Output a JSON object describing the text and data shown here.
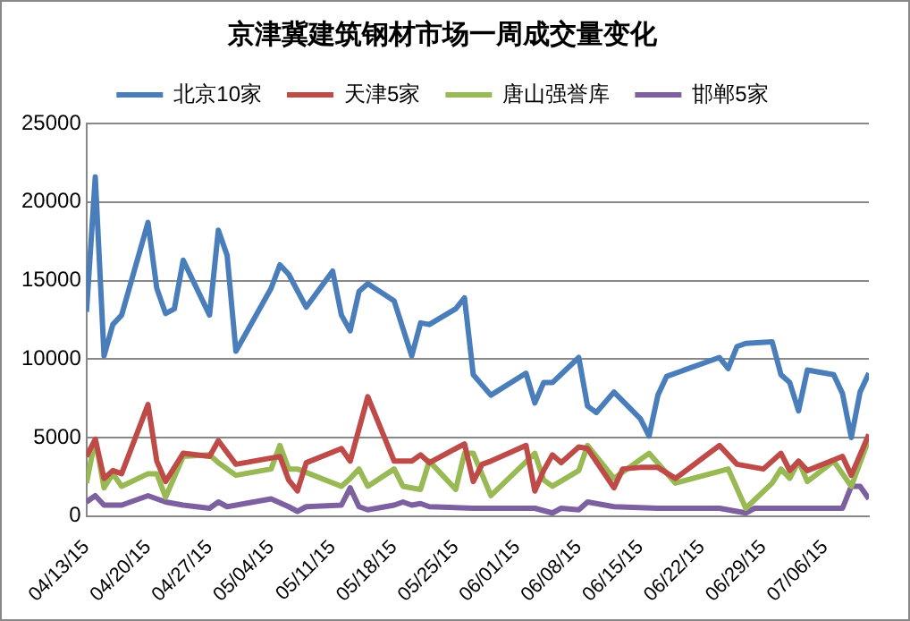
{
  "chart_data": {
    "type": "line",
    "title": "京津冀建筑钢材市场一周成交量变化",
    "series": [
      {
        "name": "北京10家",
        "color": "#4a7ebb",
        "x": [
          "--04-13",
          "--04-14",
          "--04-15",
          "--04-16",
          "--04-17",
          "--04-20",
          "--04-21",
          "--04-22",
          "--04-23",
          "--04-24",
          "--04-27",
          "--04-28",
          "--04-29",
          "--04-30",
          "--05-04",
          "--05-05",
          "--05-06",
          "--05-08",
          "--05-11",
          "--05-12",
          "--05-13",
          "--05-14",
          "--05-15",
          "--05-18",
          "--05-20",
          "--05-21",
          "--05-22",
          "--05-25",
          "--05-26",
          "--05-27",
          "--05-29",
          "--06-02",
          "--06-03",
          "--06-04",
          "--06-05",
          "--06-08",
          "--06-09",
          "--06-10",
          "--06-12",
          "--06-15",
          "--06-16",
          "--06-17",
          "--06-18",
          "--06-24",
          "--06-25",
          "--06-26",
          "--06-27",
          "--06-30",
          "--07-01",
          "--07-02",
          "--07-03",
          "--07-04",
          "--07-07",
          "--07-08",
          "--07-09",
          "--07-10",
          "--07-11"
        ],
        "values": [
          13000,
          21600,
          10200,
          12200,
          12800,
          18700,
          14500,
          12900,
          13200,
          16300,
          12800,
          18200,
          16600,
          10500,
          14500,
          16000,
          15400,
          13300,
          15600,
          12800,
          11800,
          14300,
          14800,
          13700,
          10200,
          12300,
          12200,
          13200,
          13900,
          9000,
          7700,
          9100,
          7200,
          8500,
          8500,
          10100,
          7000,
          6600,
          7900,
          6200,
          5100,
          7700,
          8900,
          10100,
          9400,
          10800,
          11000,
          11100,
          9000,
          8500,
          6700,
          9300,
          9000,
          7800,
          5000,
          7900,
          9100
        ]
      },
      {
        "name": "天津5家",
        "color": "#be4b48",
        "x": [
          "--04-13",
          "--04-14",
          "--04-15",
          "--04-16",
          "--04-17",
          "--04-20",
          "--04-21",
          "--04-22",
          "--04-24",
          "--04-27",
          "--04-28",
          "--04-30",
          "--05-04",
          "--05-05",
          "--05-06",
          "--05-07",
          "--05-08",
          "--05-12",
          "--05-13",
          "--05-15",
          "--05-18",
          "--05-20",
          "--05-21",
          "--05-22",
          "--05-26",
          "--05-27",
          "--05-28",
          "--05-29",
          "--06-02",
          "--06-03",
          "--06-04",
          "--06-05",
          "--06-06",
          "--06-08",
          "--06-09",
          "--06-12",
          "--06-13",
          "--06-15",
          "--06-17",
          "--06-19",
          "--06-24",
          "--06-26",
          "--06-29",
          "--07-01",
          "--07-02",
          "--07-03",
          "--07-04",
          "--07-08",
          "--07-09",
          "--07-11"
        ],
        "values": [
          3800,
          4900,
          2400,
          2900,
          2700,
          7100,
          3500,
          2200,
          4000,
          3800,
          4800,
          3300,
          3700,
          3800,
          2300,
          1600,
          3400,
          4300,
          3500,
          7600,
          3500,
          3500,
          3900,
          3400,
          4600,
          2200,
          3300,
          3500,
          4500,
          1600,
          2900,
          3900,
          3400,
          4400,
          4300,
          1800,
          3000,
          3100,
          3100,
          2400,
          4500,
          3300,
          3000,
          4000,
          2900,
          3500,
          2900,
          3800,
          2600,
          5200
        ]
      },
      {
        "name": "唐山强誉库",
        "color": "#98b954",
        "x": [
          "--04-13",
          "--04-14",
          "--04-15",
          "--04-16",
          "--04-17",
          "--04-20",
          "--04-21",
          "--04-22",
          "--04-24",
          "--04-27",
          "--04-28",
          "--04-30",
          "--05-04",
          "--05-05",
          "--05-06",
          "--05-07",
          "--05-12",
          "--05-13",
          "--05-14",
          "--05-15",
          "--05-18",
          "--05-19",
          "--05-21",
          "--05-22",
          "--05-25",
          "--05-26",
          "--05-27",
          "--05-29",
          "--06-03",
          "--06-04",
          "--06-05",
          "--06-08",
          "--06-09",
          "--06-12",
          "--06-16",
          "--06-19",
          "--06-25",
          "--06-27",
          "--06-30",
          "--07-01",
          "--07-02",
          "--07-03",
          "--07-04",
          "--07-07",
          "--07-09",
          "--07-11"
        ],
        "values": [
          2100,
          4900,
          1800,
          2700,
          1900,
          2700,
          2700,
          1200,
          3800,
          3900,
          3400,
          2600,
          3000,
          4500,
          3000,
          3000,
          1900,
          2400,
          3000,
          1900,
          3000,
          1900,
          1700,
          3500,
          1700,
          4000,
          4000,
          1300,
          4000,
          2300,
          1900,
          2900,
          4500,
          2400,
          4000,
          2100,
          3000,
          500,
          2100,
          3000,
          2400,
          3500,
          2200,
          3500,
          1900,
          4900
        ]
      },
      {
        "name": "邯郸5家",
        "color": "#7d60a0",
        "x": [
          "--04-13",
          "--04-14",
          "--04-15",
          "--04-17",
          "--04-20",
          "--04-22",
          "--04-24",
          "--04-27",
          "--04-28",
          "--04-29",
          "--05-04",
          "--05-06",
          "--05-07",
          "--05-08",
          "--05-12",
          "--05-13",
          "--05-14",
          "--05-15",
          "--05-18",
          "--05-19",
          "--05-20",
          "--05-21",
          "--05-22",
          "--05-27",
          "--06-03",
          "--06-05",
          "--06-06",
          "--06-08",
          "--06-09",
          "--06-12",
          "--06-17",
          "--06-24",
          "--06-27",
          "--06-28",
          "--07-01",
          "--07-08",
          "--07-09",
          "--07-10",
          "--07-11"
        ],
        "values": [
          900,
          1300,
          700,
          700,
          1300,
          900,
          700,
          500,
          900,
          600,
          1100,
          600,
          300,
          600,
          700,
          1800,
          600,
          400,
          700,
          900,
          700,
          800,
          600,
          500,
          500,
          200,
          500,
          400,
          900,
          600,
          500,
          500,
          200,
          500,
          500,
          500,
          1900,
          1900,
          1100
        ]
      }
    ],
    "xlim": [
      "--04-13",
      "--07-11"
    ],
    "xticks": [
      {
        "value": "--04-13",
        "label": "04/13/15"
      },
      {
        "value": "--04-20",
        "label": "04/20/15"
      },
      {
        "value": "--04-27",
        "label": "04/27/15"
      },
      {
        "value": "--05-04",
        "label": "05/04/15"
      },
      {
        "value": "--05-11",
        "label": "05/11/15"
      },
      {
        "value": "--05-18",
        "label": "05/18/15"
      },
      {
        "value": "--05-25",
        "label": "05/25/15"
      },
      {
        "value": "--06-01",
        "label": "06/01/15"
      },
      {
        "value": "--06-08",
        "label": "06/08/15"
      },
      {
        "value": "--06-15",
        "label": "06/15/15"
      },
      {
        "value": "--06-22",
        "label": "06/22/15"
      },
      {
        "value": "--06-29",
        "label": "06/29/15"
      },
      {
        "value": "--07-06",
        "label": "07/06/15"
      }
    ],
    "ylim": [
      0,
      25000
    ],
    "yticks": [
      0,
      5000,
      10000,
      15000,
      20000,
      25000
    ],
    "grid": "y",
    "legend": "top",
    "marker": "none",
    "line_style": "solid"
  }
}
